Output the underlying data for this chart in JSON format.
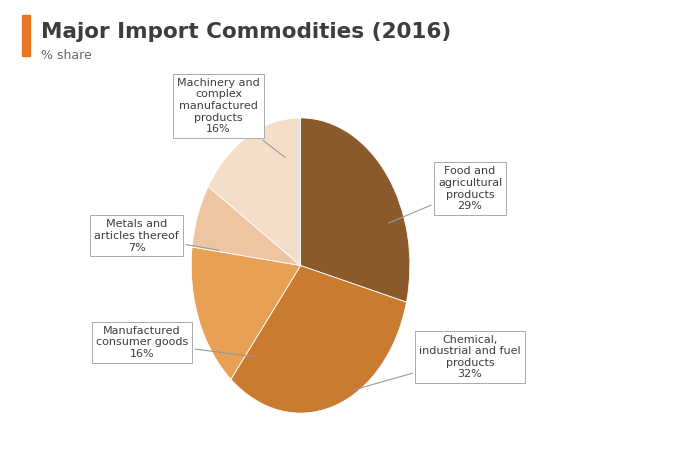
{
  "title": "Major Import Commodities (2016)",
  "subtitle": "% share",
  "title_color": "#3d3d3d",
  "accent_color": "#e87722",
  "background_color": "#ffffff",
  "slices": [
    {
      "label": "Food and\nagricultural\nproducts\n29%",
      "value": 29,
      "color": "#8B5A2B"
    },
    {
      "label": "Chemical,\nindustrial and fuel\nproducts\n32%",
      "value": 32,
      "color": "#C97B30"
    },
    {
      "label": "Manufactured\nconsumer goods\n16%",
      "value": 16,
      "color": "#E8A055"
    },
    {
      "label": "Metals and\narticles thereof\n7%",
      "value": 7,
      "color": "#EFC4A0"
    },
    {
      "label": "Machinery and\ncomplex\nmanufactured\nproducts\n16%",
      "value": 16,
      "color": "#F5DEC8"
    }
  ]
}
